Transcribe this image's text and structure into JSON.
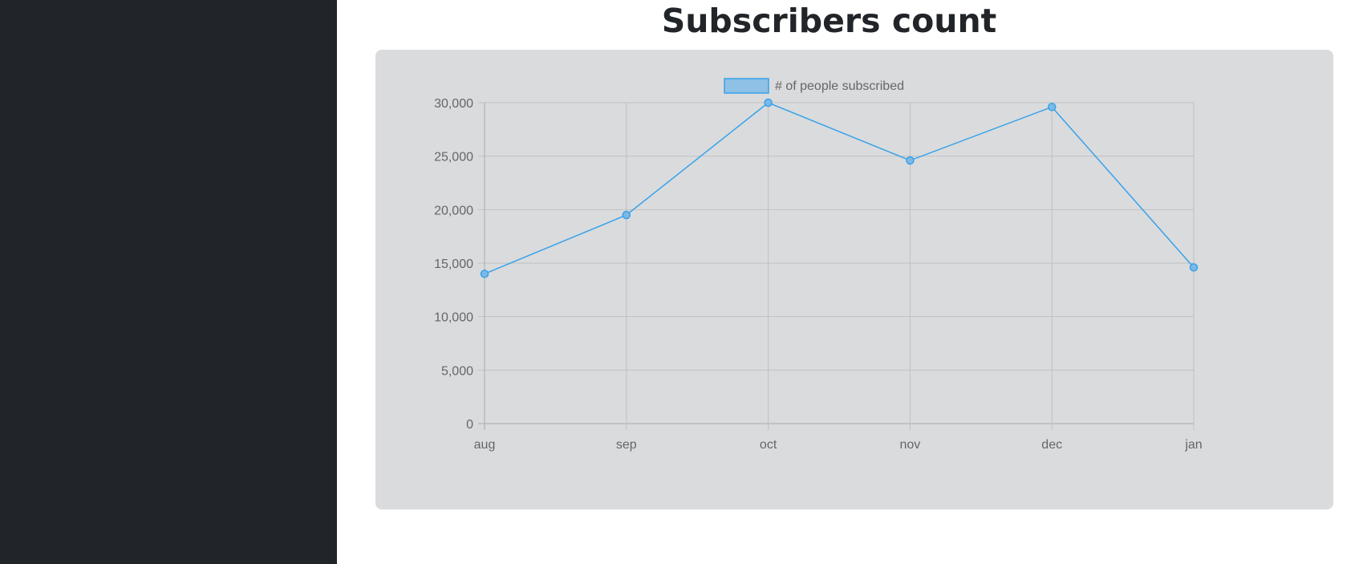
{
  "page": {
    "title": "Subscribers count"
  },
  "colors": {
    "sidebar": "#212529",
    "card": "#dadbdd",
    "line": "#36a2eb",
    "point_fill": "#7fb8e4",
    "legend_fill": "#8fc0e6",
    "grid": "#bfc0c2",
    "tick_text": "#666666"
  },
  "chart_data": {
    "type": "line",
    "categories": [
      "aug",
      "sep",
      "oct",
      "nov",
      "dec",
      "jan"
    ],
    "series": [
      {
        "name": "# of people subscribed",
        "values": [
          14000,
          19500,
          30000,
          24600,
          29600,
          14600
        ]
      }
    ],
    "ylim": [
      0,
      30000
    ],
    "yticks": [
      "0",
      "5,000",
      "10,000",
      "15,000",
      "20,000",
      "25,000",
      "30,000"
    ],
    "ytick_values": [
      0,
      5000,
      10000,
      15000,
      20000,
      25000,
      30000
    ],
    "grid": true,
    "legend": "top-center"
  }
}
